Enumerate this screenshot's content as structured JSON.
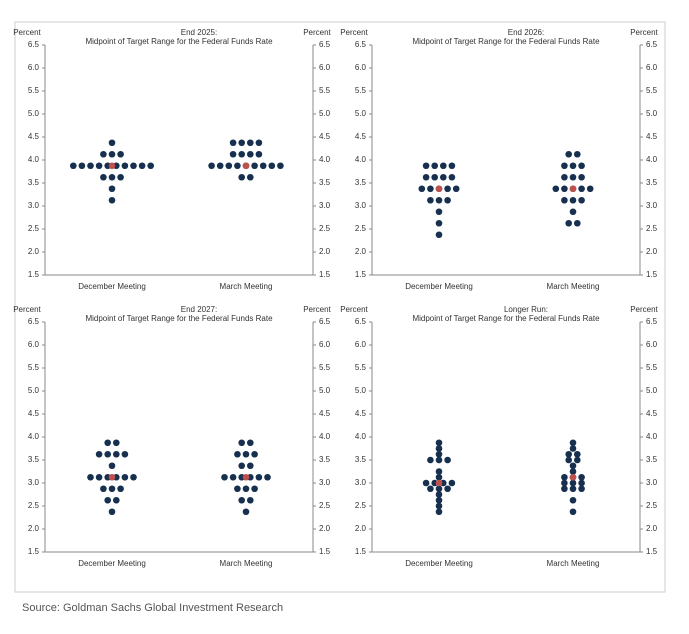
{
  "chart_data": [
    {
      "type": "dot",
      "title": "End 2025:",
      "subtitle": "Midpoint of Target Range for the Federal Funds Rate",
      "ylabel": "Percent",
      "categories": [
        "December Meeting",
        "March Meeting"
      ],
      "series": [
        {
          "name": "Participants",
          "color": "#17304f",
          "values": [
            [
              4.375,
              4.125,
              4.125,
              4.125,
              3.875,
              3.875,
              3.875,
              3.875,
              3.875,
              3.875,
              3.875,
              3.875,
              3.875,
              3.875,
              3.625,
              3.625,
              3.625,
              3.375,
              3.125
            ],
            [
              4.375,
              4.375,
              4.375,
              4.375,
              4.125,
              4.125,
              4.125,
              4.125,
              3.875,
              3.875,
              3.875,
              3.875,
              3.875,
              3.875,
              3.875,
              3.875,
              3.875,
              3.625,
              3.625
            ]
          ]
        },
        {
          "name": "Median",
          "color": "#c0504d",
          "values": [
            3.875,
            3.875
          ]
        }
      ],
      "ylim": [
        1.5,
        6.5
      ],
      "yticks": [
        1.5,
        {
          "value": 2,
          "label": "2.0"
        },
        2.5,
        {
          "value": 3,
          "label": "3.0"
        },
        3.5,
        {
          "value": 4,
          "label": "4.0"
        },
        4.5,
        {
          "value": 5,
          "label": "5.0"
        },
        5.5,
        {
          "value": 6,
          "label": "6.0"
        },
        6.5
      ]
    },
    {
      "type": "dot",
      "title": "End 2026:",
      "subtitle": "Midpoint of Target Range for the Federal Funds Rate",
      "ylabel": "Percent",
      "categories": [
        "December Meeting",
        "March Meeting"
      ],
      "series": [
        {
          "name": "Participants",
          "color": "#17304f",
          "values": [
            [
              3.875,
              3.875,
              3.875,
              3.875,
              3.625,
              3.625,
              3.625,
              3.625,
              3.375,
              3.375,
              3.375,
              3.375,
              3.375,
              3.125,
              3.125,
              3.125,
              2.875,
              2.625,
              2.375
            ],
            [
              4.125,
              4.125,
              3.875,
              3.875,
              3.875,
              3.625,
              3.625,
              3.625,
              3.375,
              3.375,
              3.375,
              3.375,
              3.375,
              3.125,
              3.125,
              3.125,
              2.875,
              2.625,
              2.625
            ]
          ]
        },
        {
          "name": "Median",
          "color": "#c0504d",
          "values": [
            3.375,
            3.375
          ]
        }
      ],
      "ylim": [
        1.5,
        6.5
      ],
      "yticks": [
        1.5,
        {
          "value": 2,
          "label": "2.0"
        },
        2.5,
        {
          "value": 3,
          "label": "3.0"
        },
        3.5,
        {
          "value": 4,
          "label": "4.0"
        },
        4.5,
        {
          "value": 5,
          "label": "5.0"
        },
        5.5,
        {
          "value": 6,
          "label": "6.0"
        },
        6.5
      ]
    },
    {
      "type": "dot",
      "title": "End 2027:",
      "subtitle": "Midpoint of Target Range for the Federal Funds Rate",
      "ylabel": "Percent",
      "categories": [
        "December Meeting",
        "March Meeting"
      ],
      "series": [
        {
          "name": "Participants",
          "color": "#17304f",
          "values": [
            [
              3.875,
              3.875,
              3.625,
              3.625,
              3.625,
              3.625,
              3.375,
              3.125,
              3.125,
              3.125,
              3.125,
              3.125,
              3.125,
              2.875,
              2.875,
              2.875,
              2.625,
              2.625,
              2.375
            ],
            [
              3.875,
              3.875,
              3.625,
              3.625,
              3.625,
              3.375,
              3.375,
              3.125,
              3.125,
              3.125,
              3.125,
              3.125,
              3.125,
              2.875,
              2.875,
              2.875,
              2.625,
              2.625,
              2.375
            ]
          ]
        },
        {
          "name": "Median",
          "color": "#c0504d",
          "values": [
            3.125,
            3.125
          ]
        }
      ],
      "ylim": [
        1.5,
        6.5
      ],
      "yticks": [
        1.5,
        {
          "value": 2,
          "label": "2.0"
        },
        2.5,
        {
          "value": 3,
          "label": "3.0"
        },
        3.5,
        {
          "value": 4,
          "label": "4.0"
        },
        4.5,
        {
          "value": 5,
          "label": "5.0"
        },
        5.5,
        {
          "value": 6,
          "label": "6.0"
        },
        6.5
      ]
    },
    {
      "type": "dot",
      "title": "Longer Run:",
      "subtitle": "Midpoint of Target Range for the Federal Funds Rate",
      "ylabel": "Percent",
      "categories": [
        "December Meeting",
        "March Meeting"
      ],
      "series": [
        {
          "name": "Participants",
          "color": "#17304f",
          "values": [
            [
              3.875,
              3.75,
              3.625,
              3.5,
              3.5,
              3.5,
              3.25,
              3.125,
              3,
              3,
              3,
              3,
              2.875,
              2.875,
              2.875,
              2.75,
              2.625,
              2.5,
              2.375
            ],
            [
              3.875,
              3.75,
              3.625,
              3.625,
              3.5,
              3.5,
              3.375,
              3.25,
              3.125,
              3.125,
              3.125,
              3,
              3,
              3,
              2.875,
              2.875,
              2.875,
              2.625,
              2.375
            ]
          ]
        },
        {
          "name": "Median",
          "color": "#c0504d",
          "values": [
            3,
            3.125
          ]
        }
      ],
      "ylim": [
        1.5,
        6.5
      ],
      "yticks": [
        1.5,
        {
          "value": 2,
          "label": "2.0"
        },
        2.5,
        {
          "value": 3,
          "label": "3.0"
        },
        3.5,
        {
          "value": 4,
          "label": "4.0"
        },
        4.5,
        {
          "value": 5,
          "label": "5.0"
        },
        5.5,
        {
          "value": 6,
          "label": "6.0"
        },
        6.5
      ]
    }
  ],
  "source": "Source: Goldman Sachs Global Investment Research"
}
